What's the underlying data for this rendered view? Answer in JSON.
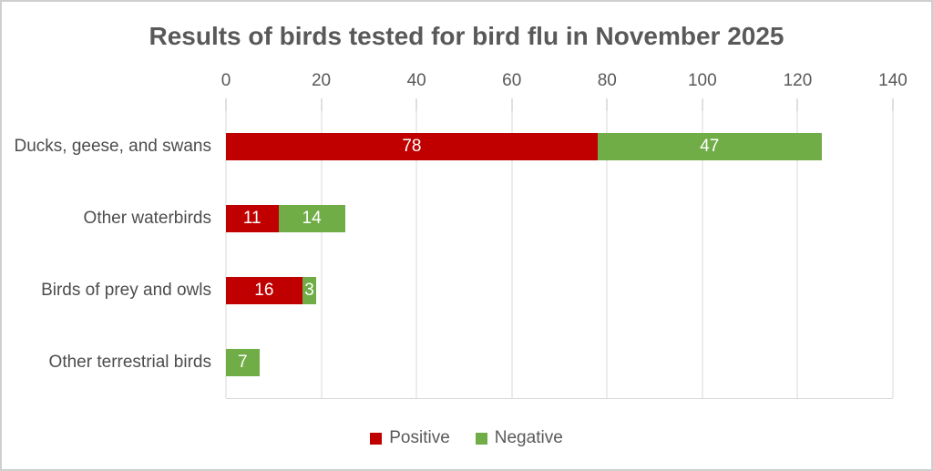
{
  "colors": {
    "positive": "#C00000",
    "negative": "#70AD47",
    "gridline": "#D9D9D9",
    "tick_mark": "#BFBFBF",
    "text": "#595959",
    "data_label_text": "#FFFFFF",
    "frame_border": "#CFCFCF"
  },
  "chart_data": {
    "type": "bar",
    "orientation": "horizontal",
    "stacked": true,
    "title": "Results of birds tested for bird flu in November 2025",
    "categories": [
      "Ducks, geese, and swans",
      "Other waterbirds",
      "Birds of prey and owls",
      "Other terrestrial birds"
    ],
    "series": [
      {
        "name": "Positive",
        "color": "#C00000",
        "values": [
          78,
          11,
          16,
          0
        ]
      },
      {
        "name": "Negative",
        "color": "#70AD47",
        "values": [
          47,
          14,
          3,
          7
        ]
      }
    ],
    "totals": [
      125,
      25,
      19,
      7
    ],
    "xlabel": "",
    "ylabel": "",
    "xlim": [
      0,
      140
    ],
    "xticks": [
      0,
      20,
      40,
      60,
      80,
      100,
      120,
      140
    ],
    "xaxis_position": "top",
    "grid": true,
    "data_labels": "shown inside segments, hidden when value is 0",
    "legend_position": "bottom-center",
    "legend": [
      "Positive",
      "Negative"
    ]
  }
}
